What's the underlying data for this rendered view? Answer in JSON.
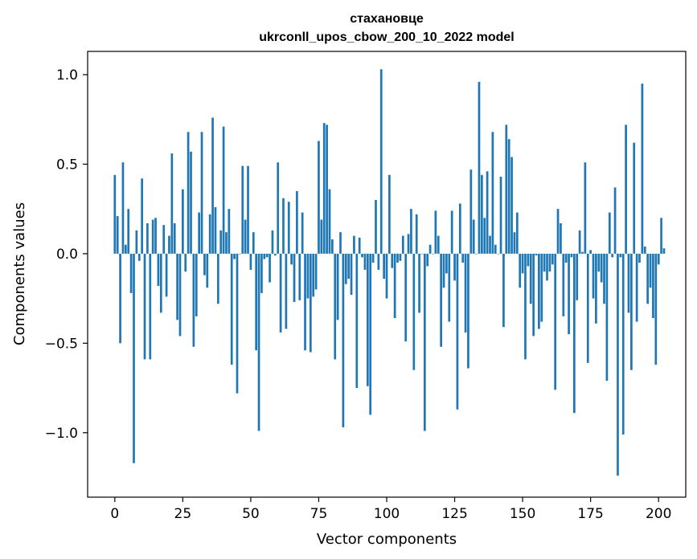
{
  "chart_data": {
    "type": "bar",
    "title": "стахановце",
    "subtitle": "ukrconll_upos_cbow_200_10_2022 model",
    "xlabel": "Vector components",
    "ylabel": "Components values",
    "xlim": [
      -10,
      210
    ],
    "ylim": [
      -1.36,
      1.13
    ],
    "xticks": [
      0,
      25,
      50,
      75,
      100,
      125,
      150,
      175,
      200
    ],
    "yticks": [
      1.0,
      0.5,
      0.0,
      -0.5,
      -1.0
    ],
    "ytick_labels": [
      "1.0",
      "0.5",
      "0.0",
      "−0.5",
      "−1.0"
    ],
    "bar_color": "#1f77b4",
    "grid": false,
    "values": [
      0.44,
      0.21,
      -0.5,
      0.51,
      0.05,
      0.25,
      -0.22,
      -1.17,
      0.13,
      -0.04,
      0.42,
      -0.59,
      0.17,
      -0.59,
      0.19,
      0.2,
      -0.18,
      -0.33,
      0.16,
      -0.24,
      0.1,
      0.56,
      0.17,
      -0.37,
      -0.46,
      0.36,
      -0.1,
      0.68,
      0.57,
      -0.52,
      -0.35,
      0.23,
      0.68,
      -0.12,
      -0.19,
      0.22,
      0.76,
      0.26,
      -0.28,
      0.13,
      0.71,
      0.12,
      0.25,
      -0.62,
      -0.03,
      -0.78,
      0.0,
      0.49,
      0.19,
      0.49,
      -0.09,
      0.12,
      -0.54,
      -0.99,
      -0.22,
      -0.03,
      -0.02,
      -0.16,
      0.13,
      -0.01,
      0.51,
      -0.44,
      0.31,
      -0.42,
      0.29,
      -0.06,
      -0.27,
      0.35,
      -0.26,
      0.23,
      -0.54,
      -0.25,
      -0.55,
      -0.24,
      -0.2,
      0.63,
      0.19,
      0.73,
      0.72,
      0.36,
      0.08,
      -0.59,
      -0.37,
      0.12,
      -0.97,
      -0.17,
      -0.14,
      -0.23,
      0.1,
      -0.75,
      0.09,
      -0.02,
      -0.09,
      -0.74,
      -0.9,
      -0.05,
      0.3,
      -0.09,
      1.03,
      -0.14,
      -0.25,
      0.44,
      -0.08,
      -0.36,
      -0.05,
      -0.04,
      0.1,
      -0.49,
      0.11,
      0.25,
      -0.65,
      0.22,
      -0.33,
      0.0,
      -0.99,
      -0.07,
      0.05,
      0.0,
      0.24,
      0.1,
      -0.52,
      -0.19,
      -0.11,
      -0.38,
      0.24,
      -0.15,
      -0.87,
      0.28,
      -0.05,
      -0.44,
      -0.64,
      0.47,
      0.19,
      0.0,
      0.96,
      0.44,
      0.2,
      0.46,
      0.1,
      0.68,
      0.05,
      0.0,
      0.43,
      -0.41,
      0.72,
      0.64,
      0.54,
      0.12,
      0.23,
      -0.19,
      -0.11,
      -0.59,
      -0.07,
      -0.28,
      -0.46,
      -0.01,
      -0.42,
      -0.38,
      -0.1,
      -0.15,
      -0.1,
      -0.06,
      -0.76,
      0.25,
      0.17,
      -0.35,
      -0.05,
      -0.45,
      -0.02,
      -0.89,
      -0.26,
      0.13,
      0.01,
      0.51,
      -0.61,
      0.02,
      -0.25,
      -0.39,
      -0.1,
      -0.16,
      -0.28,
      -0.71,
      0.23,
      -0.02,
      0.37,
      -1.24,
      -0.02,
      -1.01,
      0.72,
      -0.33,
      -0.65,
      0.62,
      -0.38,
      -0.05,
      0.95,
      0.04,
      -0.28,
      -0.19,
      -0.36,
      -0.62,
      -0.06,
      0.2,
      0.03
    ]
  }
}
